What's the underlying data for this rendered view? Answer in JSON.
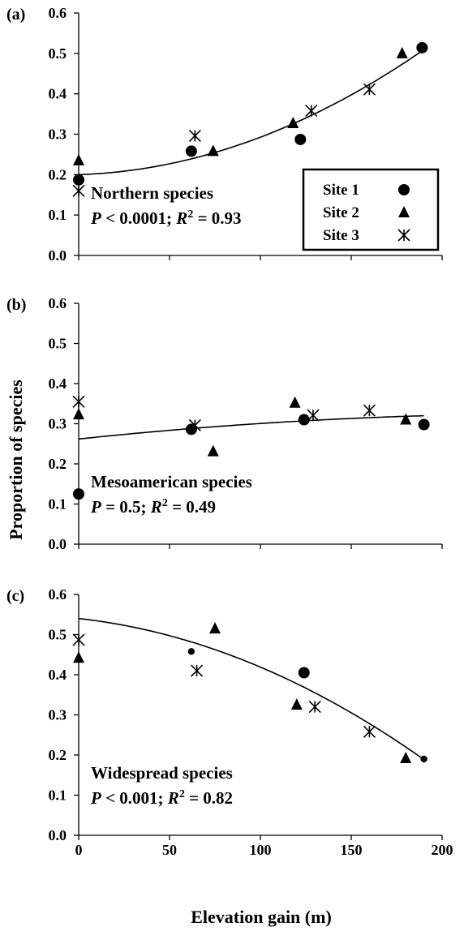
{
  "figure": {
    "ylabel": "Proportion of  species",
    "xlabel": "Elevation gain (m)",
    "x_ticks": [
      "0",
      "50",
      "100",
      "150",
      "200"
    ]
  },
  "legend": {
    "entries": [
      {
        "label": "Site 1",
        "marker": "circle"
      },
      {
        "label": "Site 2",
        "marker": "triangle"
      },
      {
        "label": "Site 3",
        "marker": "asterisk"
      }
    ]
  },
  "chart_data": [
    {
      "type": "scatter",
      "panel_label": "(a)",
      "title": "Northern species",
      "stat_prefix": "P",
      "stat_op_value": " < 0.0001;  ",
      "r2_prefix": "R",
      "r2_sup": "2",
      "r2_value": " = 0.93",
      "xlim": [
        0,
        200
      ],
      "ylim": [
        0,
        0.6
      ],
      "y_ticks": [
        "0.0",
        "0.1",
        "0.2",
        "0.3",
        "0.4",
        "0.5",
        "0.6"
      ],
      "series": [
        {
          "name": "Site 1",
          "marker": "circle",
          "x": [
            0,
            62,
            122,
            189
          ],
          "y": [
            0.187,
            0.258,
            0.287,
            0.514
          ]
        },
        {
          "name": "Site 2",
          "marker": "triangle",
          "x": [
            0,
            74,
            118,
            178
          ],
          "y": [
            0.235,
            0.258,
            0.327,
            0.5
          ]
        },
        {
          "name": "Site 3",
          "marker": "asterisk",
          "x": [
            0,
            64,
            128,
            160
          ],
          "y": [
            0.16,
            0.296,
            0.358,
            0.411
          ]
        }
      ],
      "trend": {
        "type": "quadratic",
        "a": 0.2,
        "b": 0.000146,
        "c": 7.8e-06,
        "x_range": [
          0,
          189
        ]
      }
    },
    {
      "type": "scatter",
      "panel_label": "(b)",
      "title": "Mesoamerican species",
      "stat_prefix": "P",
      "stat_op_value": " = 0.5;  ",
      "r2_prefix": "R",
      "r2_sup": "2",
      "r2_value": " = 0.49",
      "xlim": [
        0,
        200
      ],
      "ylim": [
        0,
        0.6
      ],
      "y_ticks": [
        "0.0",
        "0.1",
        "0.2",
        "0.3",
        "0.4",
        "0.5",
        "0.6"
      ],
      "series": [
        {
          "name": "Site 1",
          "marker": "circle",
          "x": [
            0,
            62,
            124,
            190
          ],
          "y": [
            0.125,
            0.286,
            0.31,
            0.298
          ]
        },
        {
          "name": "Site 2",
          "marker": "triangle",
          "x": [
            0,
            74,
            119,
            180
          ],
          "y": [
            0.323,
            0.231,
            0.352,
            0.31
          ]
        },
        {
          "name": "Site 3",
          "marker": "asterisk",
          "x": [
            0,
            64,
            129,
            160
          ],
          "y": [
            0.355,
            0.296,
            0.321,
            0.333
          ]
        }
      ],
      "trend": {
        "type": "quadratic",
        "a": 0.262,
        "b": 0.000476,
        "c": -9e-07,
        "x_range": [
          0,
          190
        ]
      }
    },
    {
      "type": "scatter",
      "panel_label": "(c)",
      "title": "Widespread species",
      "stat_prefix": "P",
      "stat_op_value": " < 0.001;  ",
      "r2_prefix": "R",
      "r2_sup": "2",
      "r2_value": " = 0.82",
      "xlim": [
        0,
        200
      ],
      "ylim": [
        0,
        0.6
      ],
      "y_ticks": [
        "0.0",
        "0.1",
        "0.2",
        "0.3",
        "0.4",
        "0.5",
        "0.6"
      ],
      "series": [
        {
          "name": "Site 1",
          "marker": "circle",
          "x": [
            62,
            124,
            190
          ],
          "y": [
            0.458,
            0.405,
            0.19
          ],
          "sizes": [
            0.6,
            1,
            0.6
          ]
        },
        {
          "name": "Site 2",
          "marker": "triangle",
          "x": [
            0,
            75,
            120,
            180
          ],
          "y": [
            0.442,
            0.515,
            0.325,
            0.192
          ]
        },
        {
          "name": "Site 3",
          "marker": "asterisk",
          "x": [
            0,
            65,
            130,
            160
          ],
          "y": [
            0.487,
            0.41,
            0.32,
            0.258
          ]
        }
      ],
      "trend": {
        "type": "quadratic",
        "a": 0.54,
        "b": -0.0005,
        "c": -7.1e-06,
        "x_range": [
          0,
          190
        ]
      }
    }
  ]
}
